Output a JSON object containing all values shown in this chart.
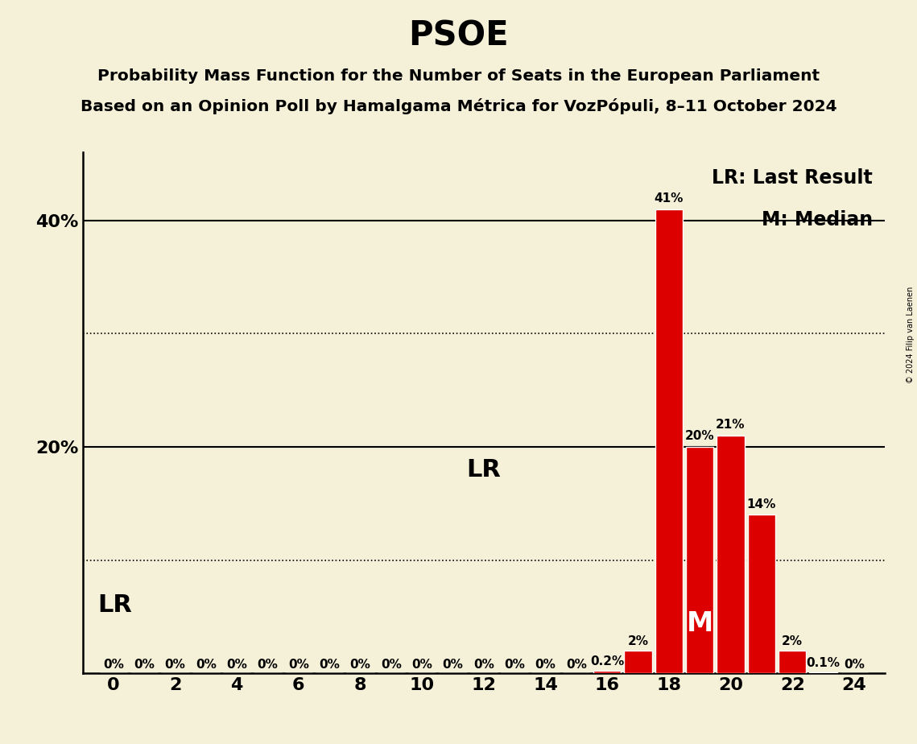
{
  "title": "PSOE",
  "subtitle1": "Probability Mass Function for the Number of Seats in the European Parliament",
  "subtitle2": "Based on an Opinion Poll by Hamalgama Métrica for VozPópuli, 8–11 October 2024",
  "copyright": "© 2024 Filip van Laenen",
  "background_color": "#f5f0d8",
  "bar_color": "#dd0000",
  "x_min": -1,
  "x_max": 25,
  "y_min": 0,
  "y_max": 0.46,
  "yticks": [
    0.0,
    0.1,
    0.2,
    0.3,
    0.4
  ],
  "ytick_labels": [
    "",
    "",
    "20%",
    "",
    "40%"
  ],
  "seats": [
    0,
    1,
    2,
    3,
    4,
    5,
    6,
    7,
    8,
    9,
    10,
    11,
    12,
    13,
    14,
    15,
    16,
    17,
    18,
    19,
    20,
    21,
    22,
    23,
    24
  ],
  "probs": [
    0,
    0,
    0,
    0,
    0,
    0,
    0,
    0,
    0,
    0,
    0,
    0,
    0,
    0,
    0,
    0,
    0.002,
    0.02,
    0.41,
    0.2,
    0.21,
    0.14,
    0.02,
    0.001,
    0
  ],
  "prob_labels": [
    "0%",
    "0%",
    "0%",
    "0%",
    "0%",
    "0%",
    "0%",
    "0%",
    "0%",
    "0%",
    "0%",
    "0%",
    "0%",
    "0%",
    "0%",
    "0%",
    "0.2%",
    "2%",
    "41%",
    "20%",
    "21%",
    "14%",
    "2%",
    "0.1%",
    "0%"
  ],
  "median_seat": 19,
  "lr_seat": 0,
  "lr_label": "LR",
  "median_label": "M",
  "legend_lr": "LR: Last Result",
  "legend_m": "M: Median",
  "title_fontsize": 30,
  "subtitle_fontsize": 14.5,
  "axis_tick_fontsize": 16,
  "bar_label_fontsize": 11,
  "legend_fontsize": 17,
  "lr_label_fontsize": 22,
  "median_label_fontsize": 24,
  "dotted_gridlines": [
    0.1,
    0.3
  ],
  "solid_gridlines": [
    0.2,
    0.4
  ]
}
